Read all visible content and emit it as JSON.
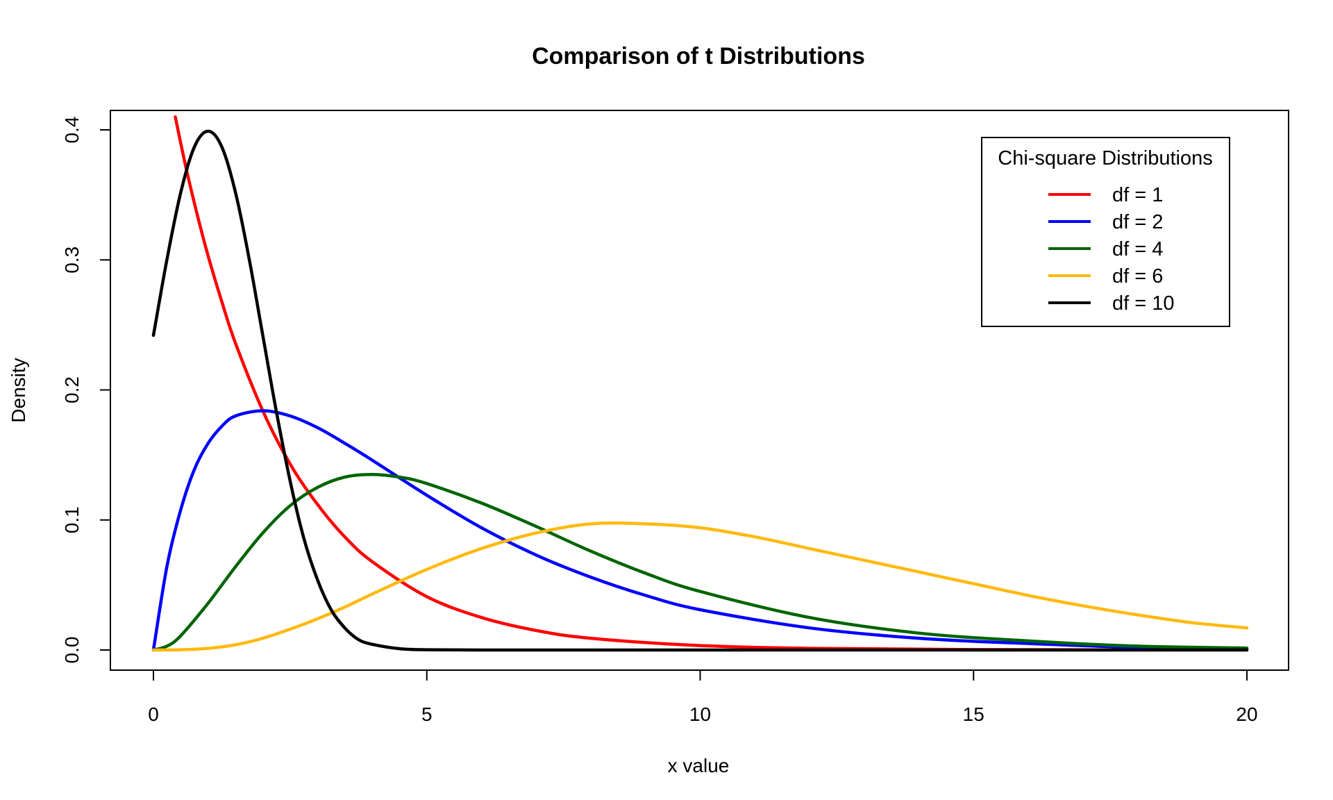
{
  "chart_data": {
    "type": "line",
    "title": "Comparison of t Distributions",
    "xlabel": "x value",
    "ylabel": "Density",
    "xlim": [
      0,
      20
    ],
    "ylim": [
      0,
      0.41
    ],
    "x_ticks": [
      "0",
      "5",
      "10",
      "15",
      "20"
    ],
    "y_ticks": [
      "0.0",
      "0.1",
      "0.2",
      "0.3",
      "0.4"
    ],
    "grid": false,
    "legend": {
      "title": "Chi-square Distributions",
      "placement": "top-right",
      "entries": [
        "df = 1",
        "df = 2",
        "df = 4",
        "df = 6",
        "df = 10"
      ]
    },
    "series": [
      {
        "name": "df = 1",
        "color": "#ff0000",
        "x": [
          0.4,
          0.6,
          0.8,
          1,
          1.25,
          1.5,
          2,
          2.5,
          3,
          3.5,
          4,
          5,
          6,
          7,
          8,
          10,
          12,
          15,
          20
        ],
        "y": [
          0.41,
          0.37,
          0.335,
          0.303,
          0.268,
          0.236,
          0.184,
          0.143,
          0.112,
          0.087,
          0.068,
          0.041,
          0.025,
          0.015,
          0.009,
          0.0034,
          0.0013,
          0.0003,
          0.0001
        ]
      },
      {
        "name": "df = 2",
        "color": "#0000ff",
        "x": [
          0,
          0.25,
          0.5,
          0.75,
          1,
          1.25,
          1.5,
          2,
          2.5,
          3,
          3.5,
          4,
          5,
          6,
          7,
          8,
          9,
          10,
          12,
          14,
          16,
          18,
          20
        ],
        "y": [
          0,
          0.065,
          0.108,
          0.139,
          0.159,
          0.172,
          0.18,
          0.184,
          0.18,
          0.171,
          0.159,
          0.146,
          0.119,
          0.094,
          0.073,
          0.056,
          0.042,
          0.031,
          0.017,
          0.009,
          0.005,
          0.002,
          0.001
        ]
      },
      {
        "name": "df = 4",
        "color": "#006400",
        "x": [
          0,
          0.25,
          0.5,
          1,
          1.5,
          2,
          2.5,
          3,
          3.5,
          4,
          4.5,
          5,
          6,
          7,
          8,
          9,
          10,
          12,
          14,
          16,
          18,
          20
        ],
        "y": [
          0,
          0.003,
          0.011,
          0.036,
          0.064,
          0.09,
          0.111,
          0.125,
          0.133,
          0.135,
          0.133,
          0.128,
          0.113,
          0.095,
          0.076,
          0.059,
          0.045,
          0.025,
          0.013,
          0.007,
          0.003,
          0.0015
        ]
      },
      {
        "name": "df = 6",
        "color": "#ffb90f",
        "x": [
          0,
          0.5,
          1,
          1.5,
          2,
          2.5,
          3,
          3.5,
          4,
          5,
          6,
          7,
          8,
          9,
          10,
          11,
          12,
          13,
          14,
          15,
          16,
          17,
          18,
          19,
          20
        ],
        "y": [
          0,
          0.0002,
          0.0013,
          0.004,
          0.009,
          0.016,
          0.024,
          0.033,
          0.043,
          0.062,
          0.078,
          0.09,
          0.097,
          0.097,
          0.094,
          0.087,
          0.078,
          0.069,
          0.06,
          0.051,
          0.042,
          0.034,
          0.027,
          0.021,
          0.017
        ]
      },
      {
        "name": "df = 10",
        "color": "#000000",
        "x": [
          0,
          0.25,
          0.5,
          0.75,
          1,
          1.25,
          1.5,
          1.75,
          2,
          2.25,
          2.5,
          2.75,
          3,
          3.25,
          3.5,
          3.75,
          4,
          4.5,
          5,
          6,
          8,
          10,
          15,
          20
        ],
        "y": [
          0.242,
          0.301,
          0.352,
          0.387,
          0.399,
          0.387,
          0.352,
          0.301,
          0.242,
          0.183,
          0.13,
          0.086,
          0.054,
          0.031,
          0.017,
          0.008,
          0.0044,
          0.001,
          0.0002,
          0,
          0,
          0,
          0,
          0
        ]
      }
    ]
  }
}
